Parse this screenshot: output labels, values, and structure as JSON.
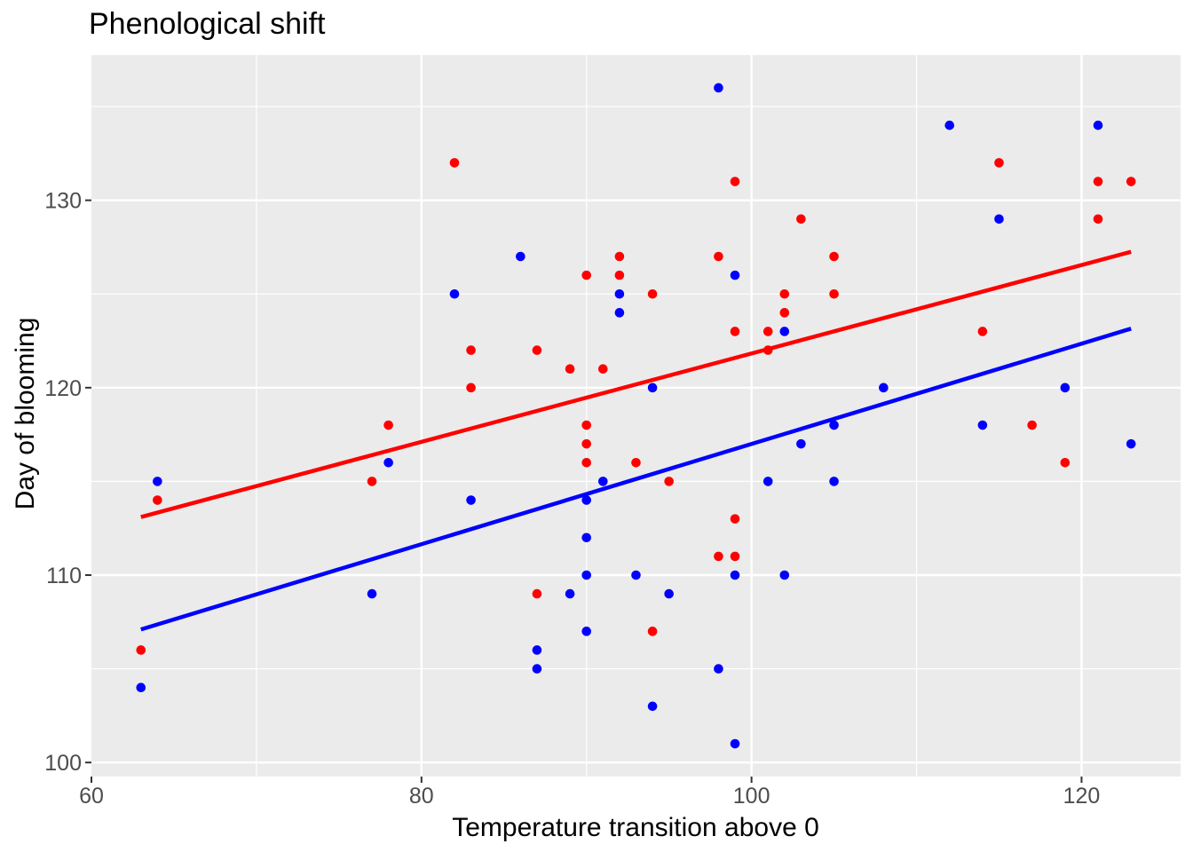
{
  "chart_data": {
    "type": "scatter",
    "title": "Phenological shift",
    "xlabel": "Temperature transition above 0",
    "ylabel": "Day of blooming",
    "x_axis": {
      "lim": [
        60,
        126
      ],
      "breaks": [
        60,
        80,
        100,
        120
      ],
      "minor_breaks": [
        70,
        90,
        110
      ],
      "tick_labels": [
        "60",
        "80",
        "100",
        "120"
      ]
    },
    "y_axis": {
      "lim": [
        99.25,
        137.75
      ],
      "breaks": [
        100,
        110,
        120,
        130
      ],
      "minor_breaks": [
        105,
        115,
        125,
        135
      ],
      "tick_labels": [
        "100",
        "110",
        "120",
        "130"
      ]
    },
    "series": [
      {
        "name": "red",
        "color": "#FF0000",
        "points": [
          [
            63,
            106
          ],
          [
            64,
            114
          ],
          [
            77,
            115
          ],
          [
            78,
            118
          ],
          [
            82,
            132
          ],
          [
            83,
            122
          ],
          [
            83,
            120
          ],
          [
            87,
            122
          ],
          [
            87,
            109
          ],
          [
            89,
            121
          ],
          [
            90,
            126
          ],
          [
            90,
            118
          ],
          [
            90,
            117
          ],
          [
            90,
            116
          ],
          [
            91,
            121
          ],
          [
            92,
            127
          ],
          [
            92,
            126
          ],
          [
            93,
            116
          ],
          [
            94,
            125
          ],
          [
            94,
            107
          ],
          [
            95,
            115
          ],
          [
            98,
            127
          ],
          [
            98,
            111
          ],
          [
            99,
            131
          ],
          [
            99,
            123
          ],
          [
            99,
            113
          ],
          [
            99,
            111
          ],
          [
            101,
            123
          ],
          [
            101,
            122
          ],
          [
            102,
            125
          ],
          [
            102,
            124
          ],
          [
            103,
            129
          ],
          [
            105,
            127
          ],
          [
            105,
            125
          ],
          [
            114,
            123
          ],
          [
            115,
            132
          ],
          [
            117,
            118
          ],
          [
            119,
            116
          ],
          [
            121,
            131
          ],
          [
            121,
            129
          ],
          [
            123,
            131
          ]
        ]
      },
      {
        "name": "blue",
        "color": "#0000FF",
        "points": [
          [
            63,
            104
          ],
          [
            64,
            115
          ],
          [
            77,
            109
          ],
          [
            78,
            116
          ],
          [
            82,
            125
          ],
          [
            83,
            114
          ],
          [
            86,
            127
          ],
          [
            87,
            106
          ],
          [
            87,
            105
          ],
          [
            89,
            109
          ],
          [
            90,
            114
          ],
          [
            90,
            112
          ],
          [
            90,
            110
          ],
          [
            90,
            107
          ],
          [
            91,
            115
          ],
          [
            92,
            125
          ],
          [
            92,
            124
          ],
          [
            93,
            110
          ],
          [
            94,
            120
          ],
          [
            94,
            103
          ],
          [
            95,
            109
          ],
          [
            98,
            136
          ],
          [
            98,
            105
          ],
          [
            99,
            126
          ],
          [
            99,
            110
          ],
          [
            99,
            101
          ],
          [
            101,
            115
          ],
          [
            102,
            123
          ],
          [
            102,
            110
          ],
          [
            103,
            117
          ],
          [
            105,
            118
          ],
          [
            105,
            115
          ],
          [
            108,
            120
          ],
          [
            112,
            134
          ],
          [
            114,
            118
          ],
          [
            115,
            129
          ],
          [
            119,
            120
          ],
          [
            121,
            134
          ],
          [
            123,
            117
          ]
        ]
      }
    ],
    "trend_lines": [
      {
        "series": "red",
        "color": "#FF0000",
        "start": [
          63,
          113.1
        ],
        "end": [
          123,
          127.25
        ]
      },
      {
        "series": "blue",
        "color": "#0000FF",
        "start": [
          63,
          107.1
        ],
        "end": [
          123,
          123.15
        ]
      }
    ],
    "style": {
      "panel_bg": "#EBEBEB",
      "grid_color": "#FFFFFF",
      "tick_color": "#333333",
      "tick_label_color": "#4D4D4D",
      "title_color": "#000000",
      "point_radius": 5.3,
      "trend_width": 4.5
    }
  }
}
